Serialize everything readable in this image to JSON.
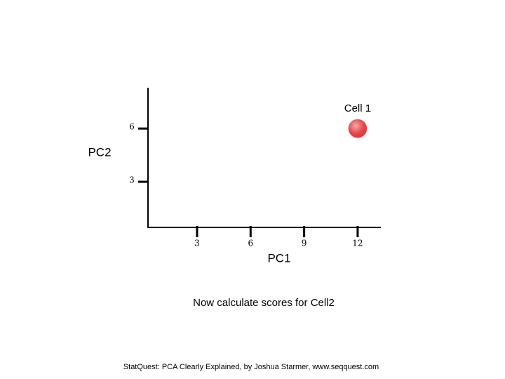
{
  "chart_data": {
    "type": "scatter",
    "x_label": "PC1",
    "y_label": "PC2",
    "series": [
      {
        "name": "Cell 1",
        "color": "#e8474b",
        "x": [
          12
        ],
        "values": [
          6
        ]
      }
    ],
    "xlim": [
      0.25,
      13.3
    ],
    "ylim": [
      0.43,
      8.3
    ],
    "xticks": [
      3,
      6,
      9,
      12
    ],
    "yticks": [
      3,
      6
    ],
    "annotations": [
      "Now calculate scores for Cell2"
    ],
    "footer": "StatQuest: PCA Clearly Explained, by Joshua Starmer, www.seqquest.com"
  }
}
